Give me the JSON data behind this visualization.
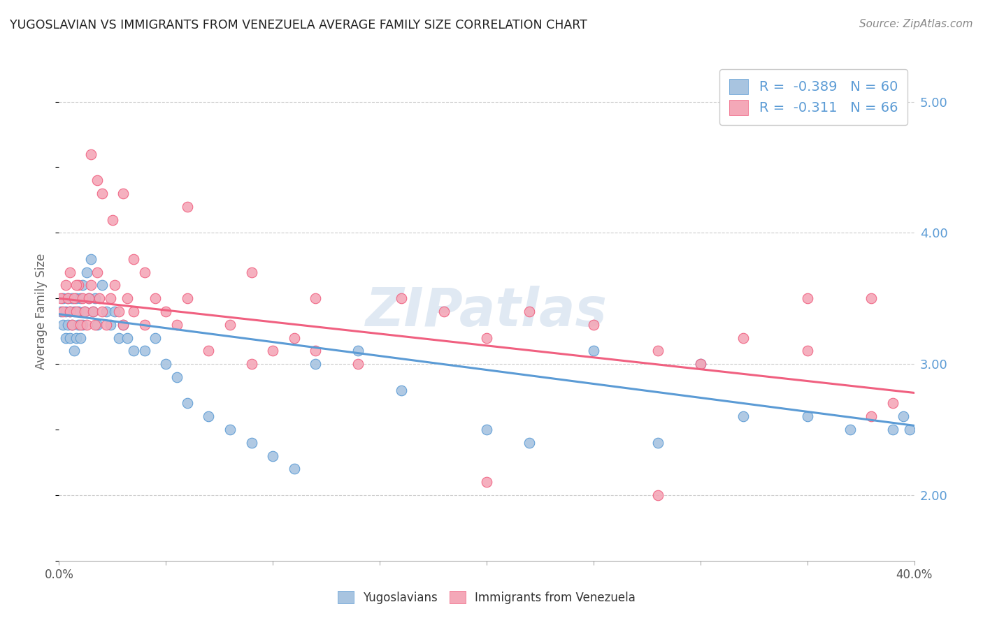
{
  "title": "YUGOSLAVIAN VS IMMIGRANTS FROM VENEZUELA AVERAGE FAMILY SIZE CORRELATION CHART",
  "source": "Source: ZipAtlas.com",
  "ylabel": "Average Family Size",
  "legend_label1": "Yugoslavians",
  "legend_label2": "Immigrants from Venezuela",
  "r1": -0.389,
  "n1": 60,
  "r2": -0.311,
  "n2": 66,
  "xlim": [
    0.0,
    0.4
  ],
  "ylim": [
    1.5,
    5.3
  ],
  "yticks": [
    2.0,
    3.0,
    4.0,
    5.0
  ],
  "xticks": [
    0.0,
    0.05,
    0.1,
    0.15,
    0.2,
    0.25,
    0.3,
    0.35,
    0.4
  ],
  "xtick_labels": [
    "0.0%",
    "",
    "",
    "",
    "",
    "",
    "",
    "",
    "40.0%"
  ],
  "color_blue": "#a8c4e0",
  "color_pink": "#f4a8b8",
  "line_color_blue": "#5b9bd5",
  "line_color_pink": "#f06080",
  "ytick_color": "#5b9bd5",
  "watermark": "ZIPatlas",
  "blue_scatter_x": [
    0.001,
    0.002,
    0.002,
    0.003,
    0.003,
    0.004,
    0.004,
    0.005,
    0.005,
    0.006,
    0.006,
    0.007,
    0.007,
    0.008,
    0.008,
    0.009,
    0.009,
    0.01,
    0.01,
    0.011,
    0.011,
    0.012,
    0.013,
    0.014,
    0.015,
    0.016,
    0.017,
    0.018,
    0.02,
    0.022,
    0.024,
    0.026,
    0.028,
    0.03,
    0.032,
    0.035,
    0.04,
    0.045,
    0.05,
    0.055,
    0.06,
    0.07,
    0.08,
    0.09,
    0.1,
    0.11,
    0.12,
    0.14,
    0.16,
    0.2,
    0.22,
    0.25,
    0.28,
    0.3,
    0.32,
    0.35,
    0.37,
    0.39,
    0.395,
    0.398
  ],
  "blue_scatter_y": [
    3.4,
    3.3,
    3.5,
    3.2,
    3.4,
    3.3,
    3.5,
    3.2,
    3.4,
    3.3,
    3.5,
    3.1,
    3.4,
    3.2,
    3.5,
    3.3,
    3.4,
    3.2,
    3.5,
    3.3,
    3.6,
    3.4,
    3.7,
    3.5,
    3.8,
    3.4,
    3.5,
    3.3,
    3.6,
    3.4,
    3.3,
    3.4,
    3.2,
    3.3,
    3.2,
    3.1,
    3.1,
    3.2,
    3.0,
    2.9,
    2.7,
    2.6,
    2.5,
    2.4,
    2.3,
    2.2,
    3.0,
    3.1,
    2.8,
    2.5,
    2.4,
    3.1,
    2.4,
    3.0,
    2.6,
    2.6,
    2.5,
    2.5,
    2.6,
    2.5
  ],
  "pink_scatter_x": [
    0.001,
    0.002,
    0.003,
    0.004,
    0.005,
    0.006,
    0.007,
    0.008,
    0.009,
    0.01,
    0.011,
    0.012,
    0.013,
    0.014,
    0.015,
    0.016,
    0.017,
    0.018,
    0.019,
    0.02,
    0.022,
    0.024,
    0.026,
    0.028,
    0.03,
    0.032,
    0.035,
    0.04,
    0.045,
    0.05,
    0.055,
    0.06,
    0.07,
    0.08,
    0.09,
    0.1,
    0.11,
    0.12,
    0.14,
    0.16,
    0.18,
    0.2,
    0.22,
    0.25,
    0.28,
    0.3,
    0.32,
    0.35,
    0.38,
    0.39,
    0.015,
    0.018,
    0.02,
    0.025,
    0.03,
    0.035,
    0.04,
    0.06,
    0.09,
    0.12,
    0.2,
    0.28,
    0.35,
    0.38,
    0.005,
    0.008
  ],
  "pink_scatter_y": [
    3.5,
    3.4,
    3.6,
    3.5,
    3.4,
    3.3,
    3.5,
    3.4,
    3.6,
    3.3,
    3.5,
    3.4,
    3.3,
    3.5,
    3.6,
    3.4,
    3.3,
    3.7,
    3.5,
    3.4,
    3.3,
    3.5,
    3.6,
    3.4,
    3.3,
    3.5,
    3.4,
    3.3,
    3.5,
    3.4,
    3.3,
    3.5,
    3.1,
    3.3,
    3.0,
    3.1,
    3.2,
    3.1,
    3.0,
    3.5,
    3.4,
    3.2,
    3.4,
    3.3,
    3.1,
    3.0,
    3.2,
    3.1,
    2.6,
    2.7,
    4.6,
    4.4,
    4.3,
    4.1,
    4.3,
    3.8,
    3.7,
    4.2,
    3.7,
    3.5,
    2.1,
    2.0,
    3.5,
    3.5,
    3.7,
    3.6
  ],
  "blue_trend_x": [
    0.0,
    0.4
  ],
  "blue_trend_y": [
    3.38,
    2.53
  ],
  "pink_trend_x": [
    0.0,
    0.4
  ],
  "pink_trend_y": [
    3.5,
    2.78
  ]
}
